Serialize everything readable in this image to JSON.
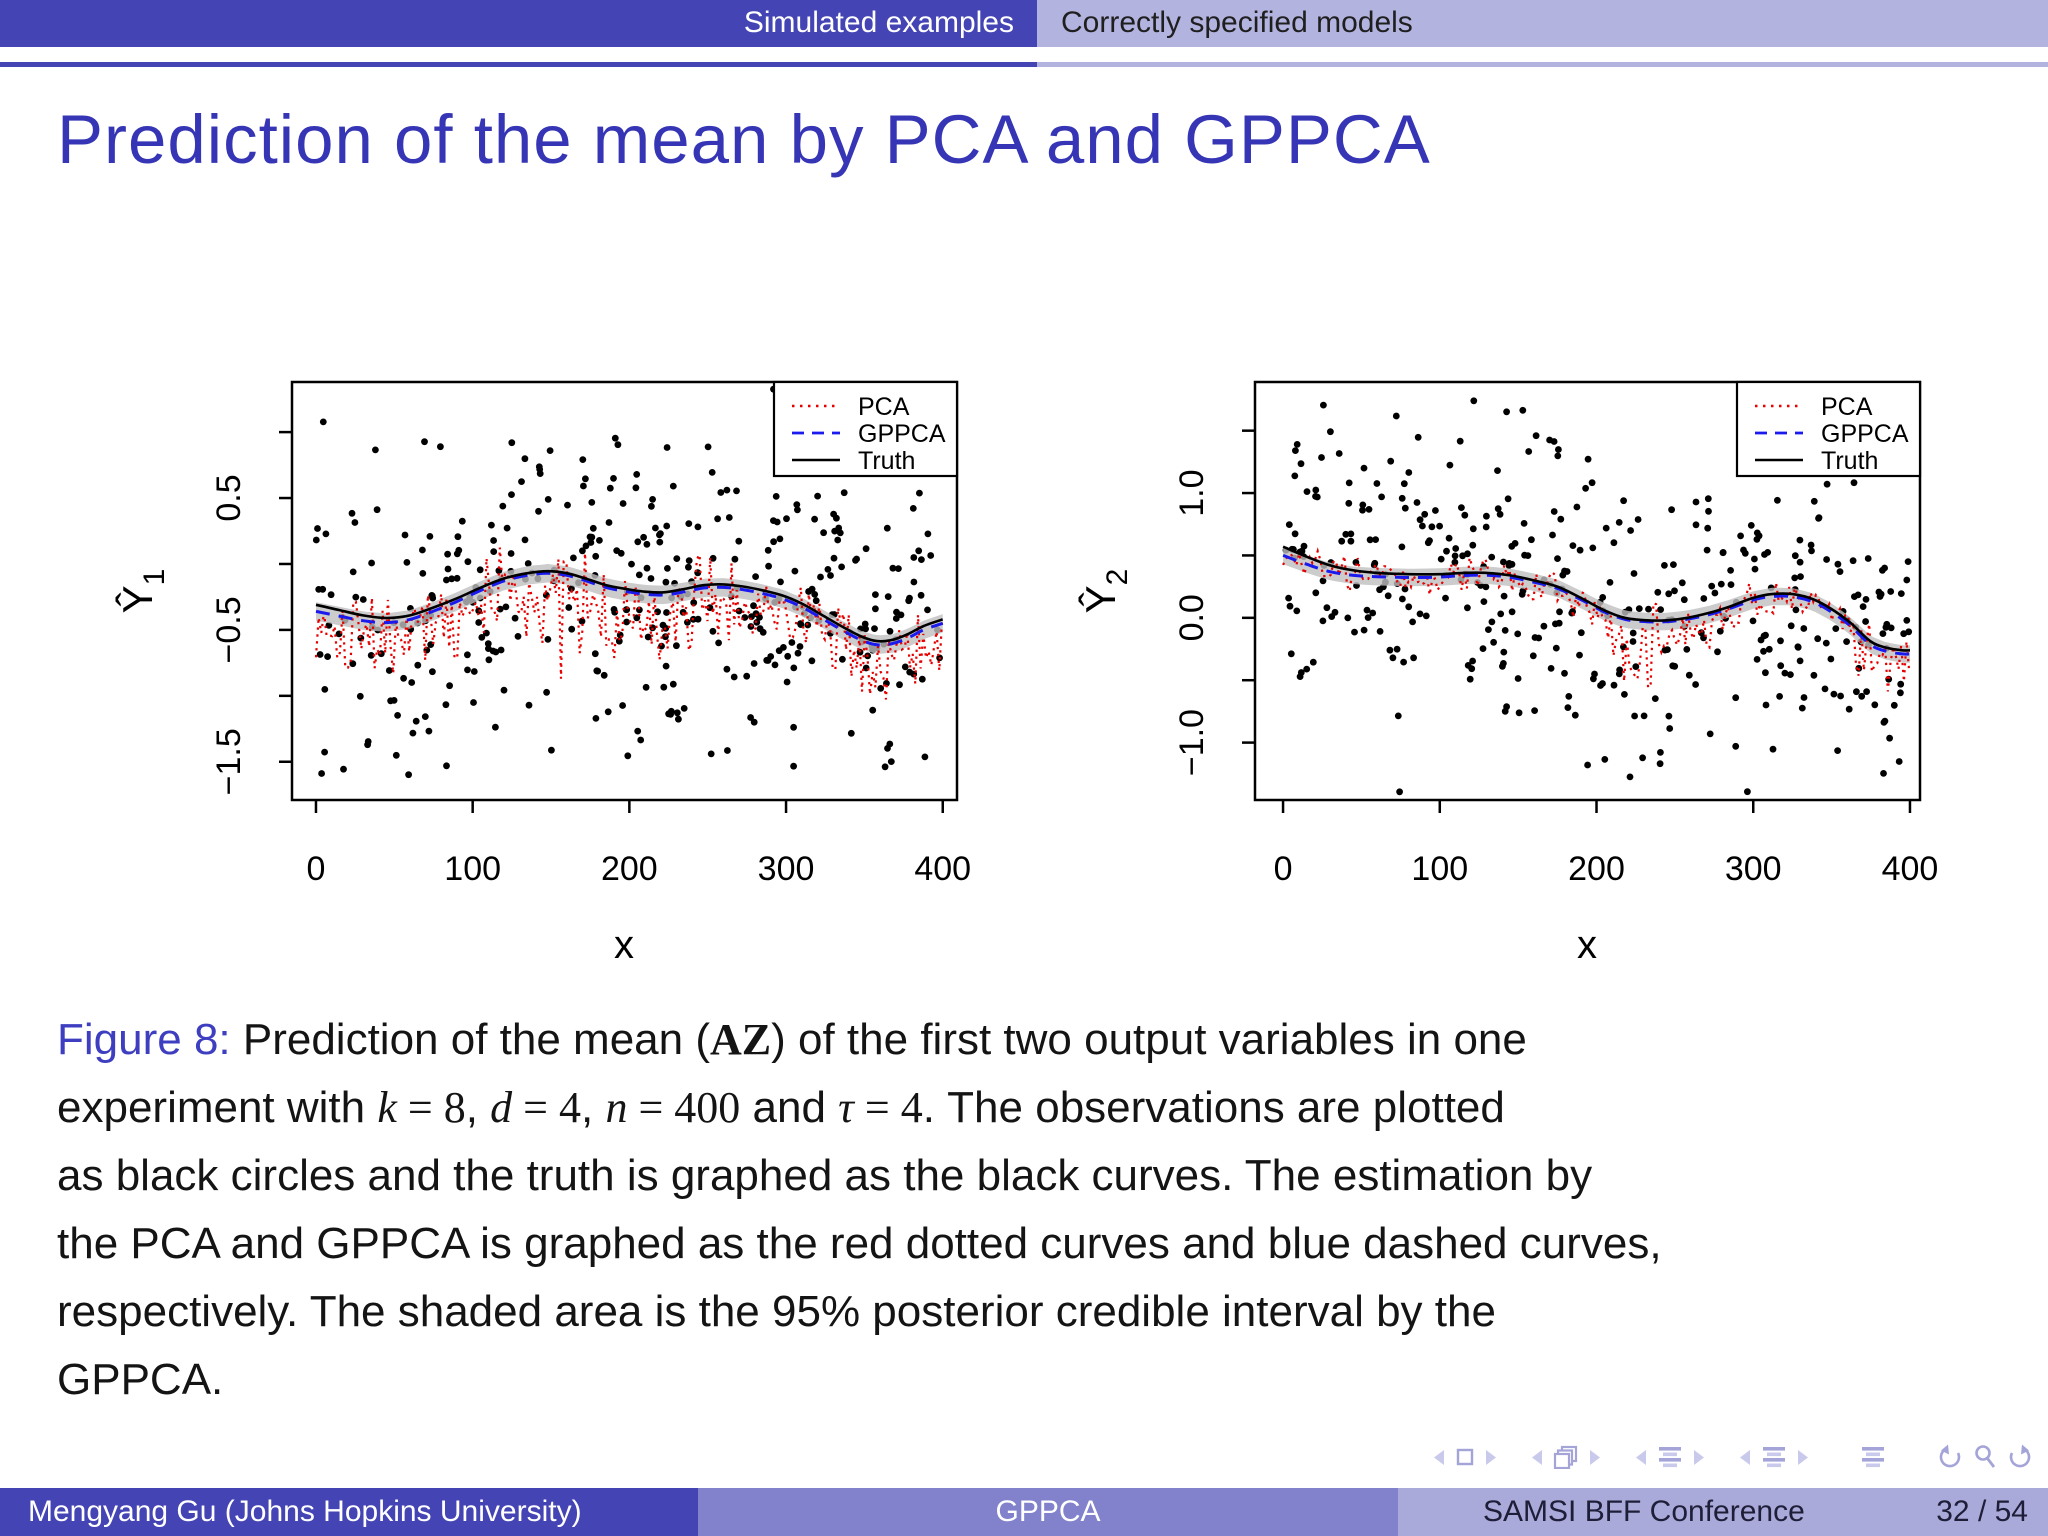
{
  "header": {
    "left_tab": "Simulated examples",
    "right_tab": "Correctly specified models"
  },
  "title": "Prediction of the mean by PCA and GPPCA",
  "colors": {
    "header_dark": "#4444b4",
    "header_light": "#b3b3e0",
    "footer_mid": "#8181cc",
    "footer_right": "#a9a9da",
    "title": "#3535b5",
    "figure_label": "#3e3ec0",
    "pca": "#e60000",
    "gppca": "#1a1aee",
    "truth": "#000000",
    "band": "#bfbfbf",
    "nav": "#a4a4d8",
    "nav_light": "#c9c9ec"
  },
  "chart_data": [
    {
      "id": "Y1",
      "type": "scatter",
      "ylabel_base": "Ŷ",
      "ylabel_sub": "1",
      "xlabel": "x",
      "xlim": [
        -15.3,
        409.1
      ],
      "ylim": [
        -1.79,
        1.38
      ],
      "xticks": [
        0,
        100,
        200,
        300,
        400
      ],
      "yticks": [
        -1.5,
        -1.0,
        -0.5,
        0.0,
        0.5,
        1.0
      ],
      "yticks_labeled": [
        -1.5,
        -0.5,
        0.5
      ],
      "legend": [
        {
          "label": "PCA",
          "series": "pca"
        },
        {
          "label": "GPPCA",
          "series": "gppca"
        },
        {
          "label": "Truth",
          "series": "truth"
        }
      ],
      "truth": [
        [
          0,
          -0.31
        ],
        [
          15,
          -0.35
        ],
        [
          30,
          -0.39
        ],
        [
          45,
          -0.41
        ],
        [
          60,
          -0.39
        ],
        [
          75,
          -0.33
        ],
        [
          90,
          -0.26
        ],
        [
          105,
          -0.18
        ],
        [
          120,
          -0.11
        ],
        [
          135,
          -0.07
        ],
        [
          148,
          -0.055
        ],
        [
          160,
          -0.07
        ],
        [
          172,
          -0.11
        ],
        [
          185,
          -0.16
        ],
        [
          198,
          -0.19
        ],
        [
          210,
          -0.21
        ],
        [
          222,
          -0.215
        ],
        [
          235,
          -0.19
        ],
        [
          248,
          -0.16
        ],
        [
          260,
          -0.155
        ],
        [
          272,
          -0.17
        ],
        [
          285,
          -0.2
        ],
        [
          298,
          -0.24
        ],
        [
          310,
          -0.3
        ],
        [
          322,
          -0.38
        ],
        [
          335,
          -0.47
        ],
        [
          348,
          -0.55
        ],
        [
          358,
          -0.585
        ],
        [
          368,
          -0.575
        ],
        [
          378,
          -0.53
        ],
        [
          388,
          -0.47
        ],
        [
          400,
          -0.42
        ]
      ],
      "gppca_offset": [
        [
          0,
          -0.05
        ],
        [
          60,
          -0.03
        ],
        [
          140,
          -0.015
        ],
        [
          220,
          -0.02
        ],
        [
          300,
          -0.025
        ],
        [
          400,
          -0.03
        ]
      ],
      "ci_halfwidth": 0.07,
      "scatter": {
        "n": 400,
        "noise_sd": 0.6,
        "seed": 7
      },
      "pca_noise": {
        "step": 1.7,
        "amp": 0.45,
        "bias": -0.12,
        "seed": 101,
        "spikes": [
          {
            "x0": 140,
            "x1": 230,
            "amp": 0.58,
            "bias": -0.12
          }
        ]
      }
    },
    {
      "id": "Y2",
      "type": "scatter",
      "ylabel_base": "Ŷ",
      "ylabel_sub": "2",
      "xlabel": "x",
      "xlim": [
        -17.9,
        406.4
      ],
      "ylim": [
        -1.46,
        1.89
      ],
      "xticks": [
        0,
        100,
        200,
        300,
        400
      ],
      "yticks": [
        -1.0,
        -0.5,
        0.0,
        0.5,
        1.0,
        1.5
      ],
      "yticks_labeled": [
        -1.0,
        0.0,
        1.0
      ],
      "legend": [
        {
          "label": "PCA",
          "series": "pca"
        },
        {
          "label": "GPPCA",
          "series": "gppca"
        },
        {
          "label": "Truth",
          "series": "truth"
        }
      ],
      "truth": [
        [
          0,
          0.57
        ],
        [
          15,
          0.49
        ],
        [
          30,
          0.42
        ],
        [
          45,
          0.38
        ],
        [
          60,
          0.36
        ],
        [
          80,
          0.35
        ],
        [
          100,
          0.35
        ],
        [
          115,
          0.36
        ],
        [
          130,
          0.36
        ],
        [
          145,
          0.34
        ],
        [
          160,
          0.3
        ],
        [
          175,
          0.25
        ],
        [
          190,
          0.16
        ],
        [
          205,
          0.06
        ],
        [
          218,
          0.0
        ],
        [
          232,
          -0.02
        ],
        [
          245,
          -0.02
        ],
        [
          258,
          0.0
        ],
        [
          272,
          0.04
        ],
        [
          285,
          0.09
        ],
        [
          300,
          0.16
        ],
        [
          312,
          0.19
        ],
        [
          325,
          0.19
        ],
        [
          338,
          0.15
        ],
        [
          350,
          0.07
        ],
        [
          362,
          -0.04
        ],
        [
          375,
          -0.19
        ],
        [
          385,
          -0.24
        ],
        [
          395,
          -0.26
        ],
        [
          400,
          -0.26
        ]
      ],
      "gppca_offset": [
        [
          0,
          -0.07
        ],
        [
          60,
          -0.03
        ],
        [
          150,
          -0.015
        ],
        [
          250,
          -0.01
        ],
        [
          320,
          -0.02
        ],
        [
          400,
          -0.03
        ]
      ],
      "ci_halfwidth": 0.07,
      "scatter": {
        "n": 400,
        "noise_sd": 0.62,
        "seed": 13
      },
      "pca_noise": {
        "step": 1.7,
        "amp": 0.16,
        "bias": -0.03,
        "seed": 202,
        "spikes": [
          {
            "x0": 200,
            "x1": 252,
            "amp": 0.5,
            "bias": -0.16
          },
          {
            "x0": 252,
            "x1": 330,
            "amp": 0.22,
            "bias": -0.04
          },
          {
            "x0": 365,
            "x1": 400,
            "amp": 0.32,
            "bias": -0.1
          }
        ]
      }
    }
  ],
  "caption": {
    "segments": [
      {
        "t": "Figure 8:",
        "s": "fig"
      },
      {
        "t": " Prediction of the mean ("
      },
      {
        "t": "AZ",
        "s": "bf"
      },
      {
        "t": ") of the first two output variables in one"
      },
      {
        "br": true
      },
      {
        "t": "experiment with "
      },
      {
        "t": "k",
        "s": "it"
      },
      {
        "t": " = 8",
        "s": "rm"
      },
      {
        "t": ", "
      },
      {
        "t": "d",
        "s": "it"
      },
      {
        "t": " = 4",
        "s": "rm"
      },
      {
        "t": ", "
      },
      {
        "t": "n",
        "s": "it"
      },
      {
        "t": " = 400",
        "s": "rm"
      },
      {
        "t": " and "
      },
      {
        "t": "τ",
        "s": "it"
      },
      {
        "t": " = 4",
        "s": "rm"
      },
      {
        "t": ". The observations are plotted"
      },
      {
        "br": true
      },
      {
        "t": "as black circles and the truth is graphed as the black curves. The estimation by"
      },
      {
        "br": true
      },
      {
        "t": "the PCA and GPPCA is graphed as the red dotted curves and blue dashed curves,"
      },
      {
        "br": true
      },
      {
        "t": "respectively. The shaded area is the 95% posterior credible interval by the"
      },
      {
        "br": true
      },
      {
        "t": "GPPCA."
      }
    ]
  },
  "nav": {
    "icons": [
      "prev-slide",
      "current-frame",
      "next-slide",
      "prev-frame",
      "frames",
      "next-frame",
      "prev-subsection",
      "subsection",
      "next-subsection",
      "prev-section",
      "section",
      "next-section",
      "appendix",
      "back",
      "search",
      "forward"
    ]
  },
  "footer": {
    "author": "Mengyang Gu  (Johns Hopkins University)",
    "short_title": "GPPCA",
    "conference": "SAMSI BFF Conference",
    "page": "32 / 54"
  }
}
